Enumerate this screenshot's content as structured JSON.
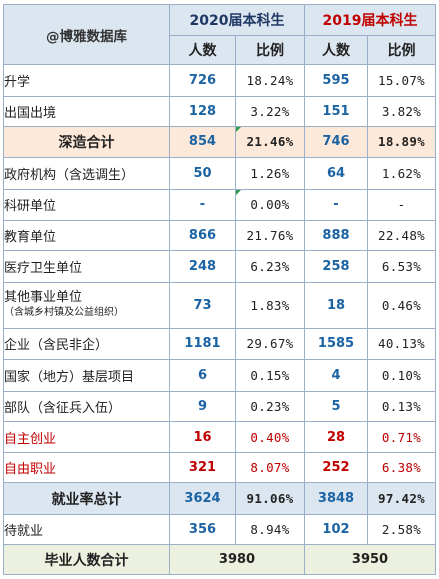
{
  "header": {
    "brand": "@博雅数据库",
    "year_2020": "2020届本科生",
    "year_2019": "2019届本科生",
    "col_count": "人数",
    "col_ratio": "比例"
  },
  "rows": [
    {
      "label": "升学",
      "c2020": "726",
      "p2020": "18.24%",
      "c2019": "595",
      "p2019": "15.07%"
    },
    {
      "label": "出国出境",
      "c2020": "128",
      "p2020": "3.22%",
      "c2019": "151",
      "p2019": "3.82%"
    },
    {
      "label": "深造合计",
      "c2020": "854",
      "p2020": "21.46%",
      "c2019": "746",
      "p2019": "18.89%"
    },
    {
      "label": "政府机构（含选调生）",
      "c2020": "50",
      "p2020": "1.26%",
      "c2019": "64",
      "p2019": "1.62%"
    },
    {
      "label": "科研单位",
      "c2020": "-",
      "p2020": "0.00%",
      "c2019": "-",
      "p2019": "-"
    },
    {
      "label": "教育单位",
      "c2020": "866",
      "p2020": "21.76%",
      "c2019": "888",
      "p2019": "22.48%"
    },
    {
      "label": "医疗卫生单位",
      "c2020": "248",
      "p2020": "6.23%",
      "c2019": "258",
      "p2019": "6.53%"
    },
    {
      "label": "其他事业单位",
      "sublabel": "（含城乡村镇及公益组织）",
      "c2020": "73",
      "p2020": "1.83%",
      "c2019": "18",
      "p2019": "0.46%"
    },
    {
      "label": "企业（含民非企）",
      "c2020": "1181",
      "p2020": "29.67%",
      "c2019": "1585",
      "p2019": "40.13%"
    },
    {
      "label": "国家（地方）基层项目",
      "c2020": "6",
      "p2020": "0.15%",
      "c2019": "4",
      "p2019": "0.10%"
    },
    {
      "label": "部队（含征兵入伍）",
      "c2020": "9",
      "p2020": "0.23%",
      "c2019": "5",
      "p2019": "0.13%"
    },
    {
      "label": "自主创业",
      "c2020": "16",
      "p2020": "0.40%",
      "c2019": "28",
      "p2019": "0.71%"
    },
    {
      "label": "自由职业",
      "c2020": "321",
      "p2020": "8.07%",
      "c2019": "252",
      "p2019": "6.38%"
    },
    {
      "label": "就业率总计",
      "c2020": "3624",
      "p2020": "91.06%",
      "c2019": "3848",
      "p2019": "97.42%"
    },
    {
      "label": "待就业",
      "c2020": "356",
      "p2020": "8.94%",
      "c2019": "102",
      "p2019": "2.58%"
    }
  ],
  "graduates": {
    "label": "毕业人数合计",
    "total_2020": "3980",
    "total_2019": "3950"
  },
  "colors": {
    "header_bg": "#dce6f1",
    "highlight_bg": "#fde9d9",
    "grad_bg": "#ebf1de",
    "number_blue": "#1b63a3",
    "red": "#c00000"
  }
}
